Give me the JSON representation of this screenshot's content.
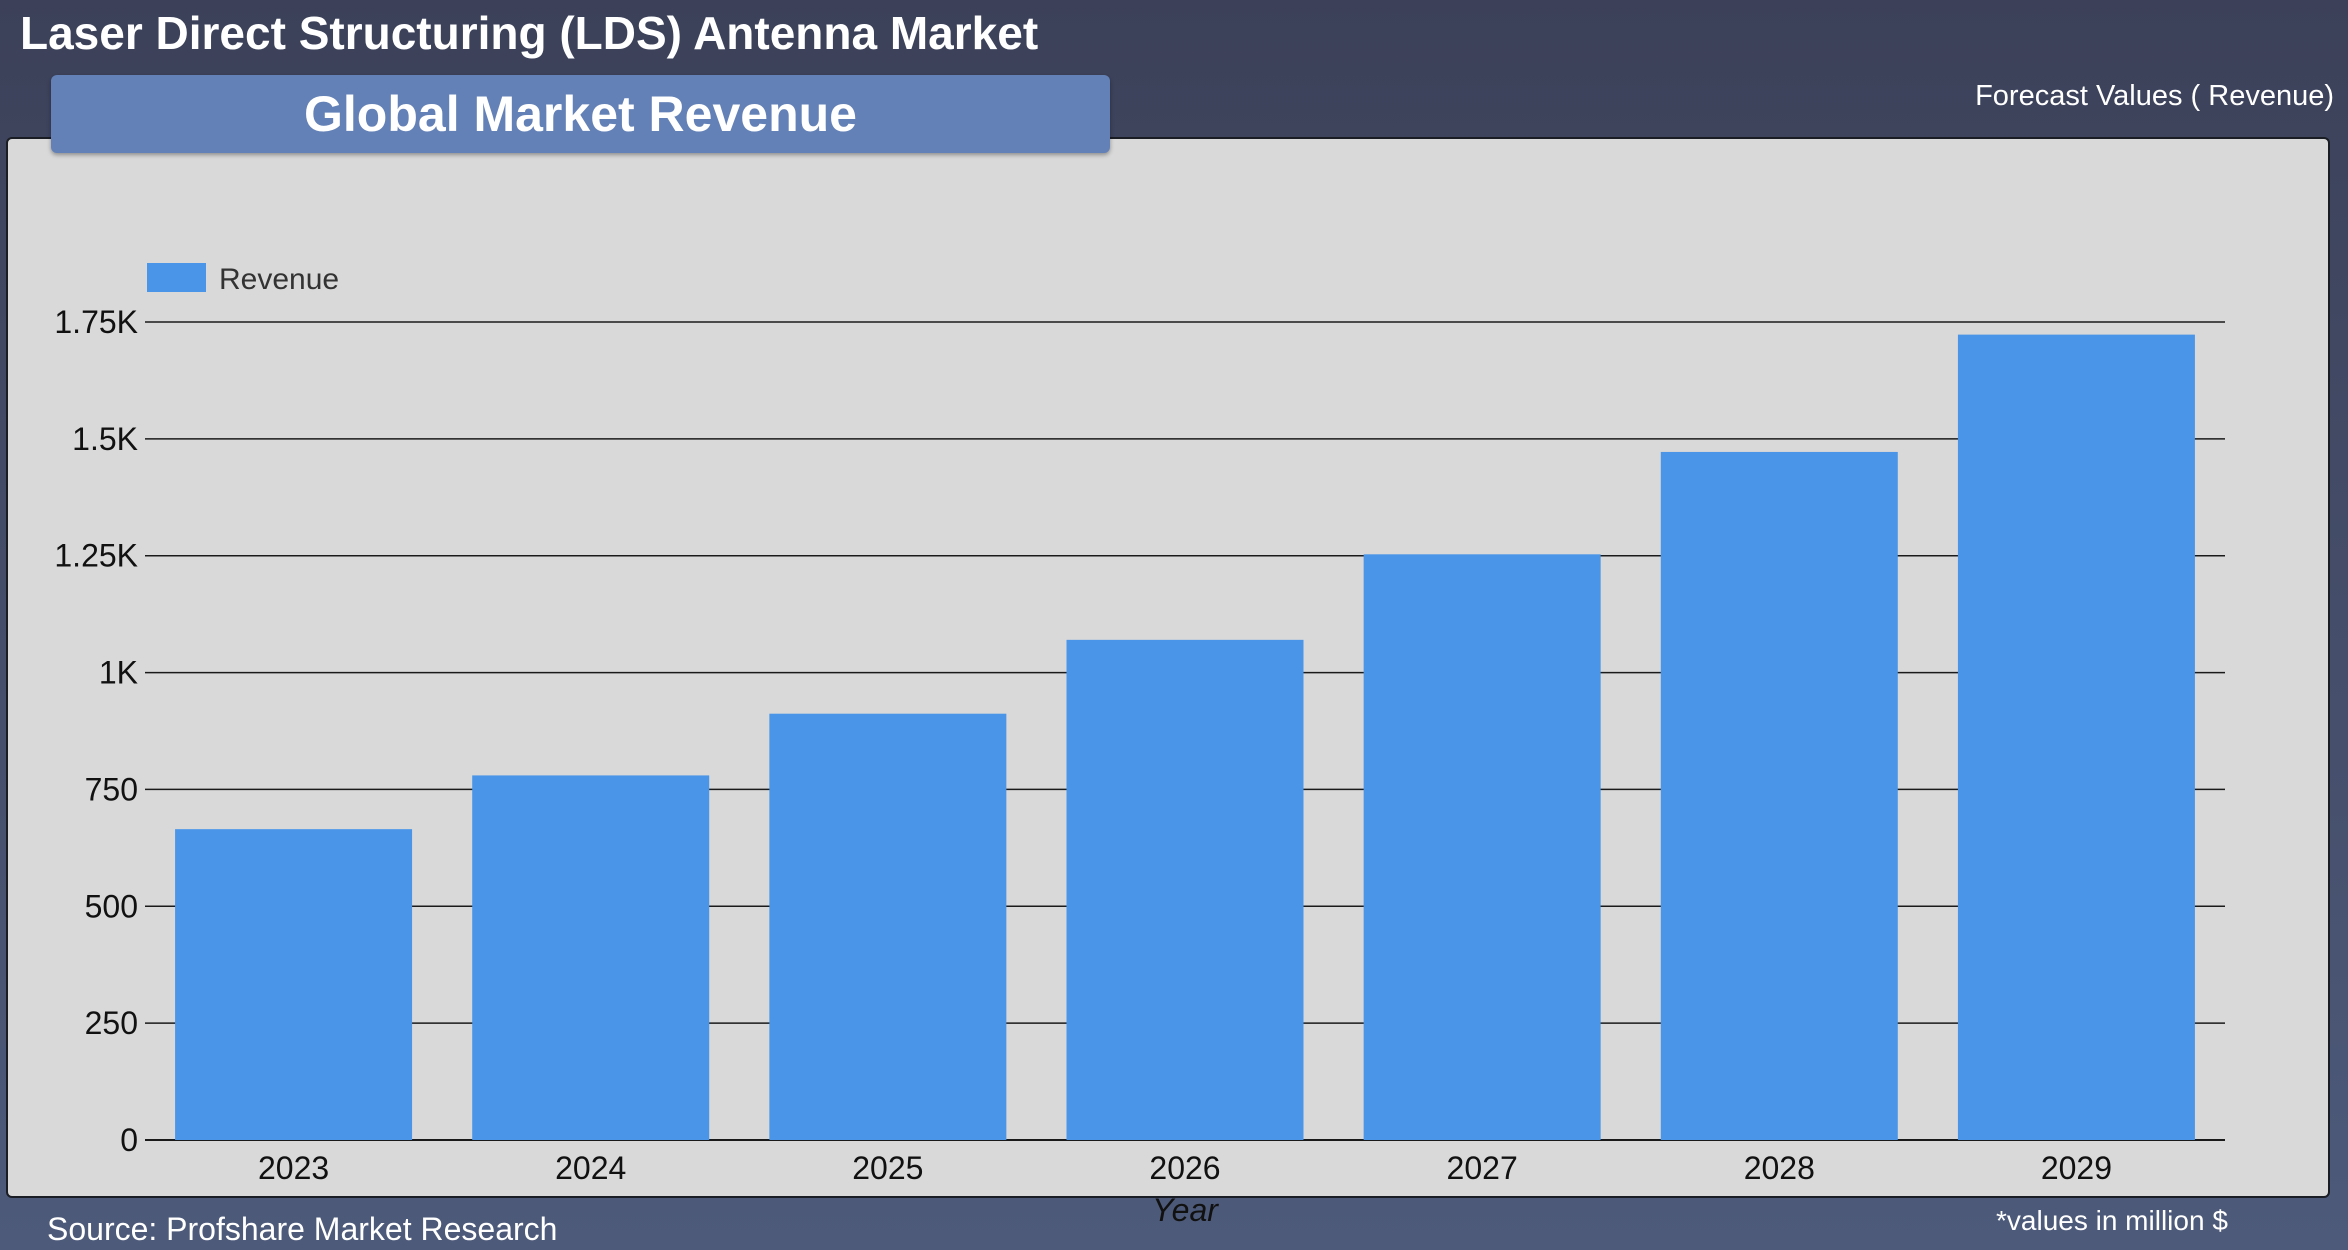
{
  "header": {
    "title": "Laser Direct Structuring (LDS) Antenna Market",
    "forecast_label": "Forecast Values ( Revenue)"
  },
  "panel": {
    "tab_label": "Global Market Revenue"
  },
  "footer": {
    "source": "Source: Profshare Market Research",
    "units_note": "*values in million $"
  },
  "chart_data": {
    "type": "bar",
    "title": "Global Market Revenue",
    "xlabel": "Year",
    "ylabel": "",
    "categories": [
      "2023",
      "2024",
      "2025",
      "2026",
      "2027",
      "2028",
      "2029"
    ],
    "series": [
      {
        "name": "Revenue",
        "values": [
          665,
          780,
          912,
          1070,
          1253,
          1472,
          1723
        ],
        "color": "#4a95e8"
      }
    ],
    "ylim": [
      0,
      1750
    ],
    "yticks": [
      0,
      250,
      500,
      750,
      1000,
      1250,
      1500,
      1750
    ],
    "ytick_labels": [
      "0",
      "250",
      "500",
      "750",
      "1K",
      "1.25K",
      "1.5K",
      "1.75K"
    ],
    "grid": true,
    "legend": "top-left"
  }
}
